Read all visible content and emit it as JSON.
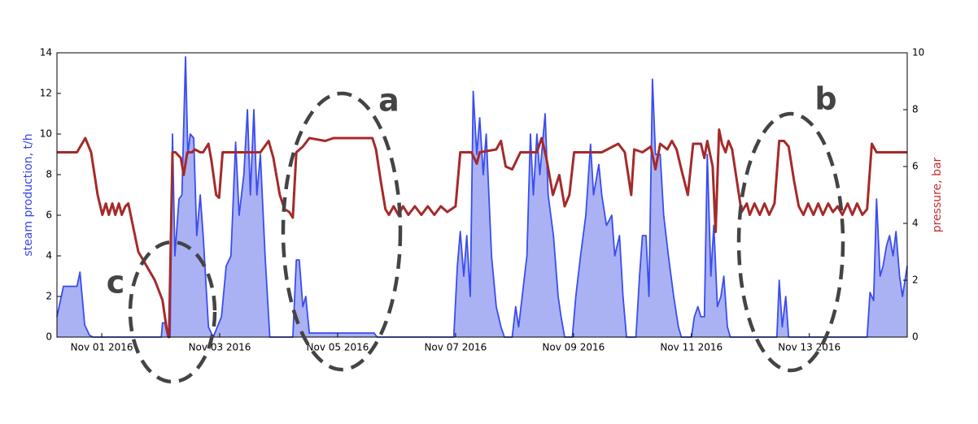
{
  "chart_data": {
    "type": "line",
    "ylabel": "steam production, t/h",
    "y2label": "pressure, bar",
    "xlim": [
      0.24,
      14.66
    ],
    "xticks": [
      {
        "value": 1,
        "label": "Nov 01 2016"
      },
      {
        "value": 3,
        "label": "Nov 03 2016"
      },
      {
        "value": 5,
        "label": "Nov 05 2016"
      },
      {
        "value": 7,
        "label": "Nov 07 2016"
      },
      {
        "value": 9,
        "label": "Nov 09 2016"
      },
      {
        "value": 11,
        "label": "Nov 11 2016"
      },
      {
        "value": 13,
        "label": "Nov 13 2016"
      }
    ],
    "ylim": [
      0,
      14
    ],
    "yticks": [
      0,
      2,
      4,
      6,
      8,
      10,
      12,
      14
    ],
    "y2lim": [
      0,
      10
    ],
    "y2ticks": [
      0,
      2,
      4,
      6,
      8,
      10
    ],
    "grid": false,
    "annotations": [
      {
        "text": "a"
      },
      {
        "text": "b"
      },
      {
        "text": "c"
      }
    ],
    "series": [
      {
        "color": "#3a4cf0",
        "fill": "#aab2f4",
        "axis": "y",
        "x": [
          0.24,
          0.35,
          0.58,
          0.63,
          0.71,
          0.79,
          0.85,
          2.01,
          2.03,
          2.07,
          2.12,
          2.16,
          2.2,
          2.24,
          2.31,
          2.36,
          2.42,
          2.46,
          2.5,
          2.56,
          2.61,
          2.67,
          2.72,
          2.81,
          2.89,
          3.03,
          3.11,
          3.19,
          3.27,
          3.33,
          3.41,
          3.47,
          3.52,
          3.58,
          3.63,
          3.69,
          3.77,
          3.85,
          4.24,
          4.3,
          4.35,
          4.41,
          4.46,
          4.52,
          5.62,
          5.67,
          6.97,
          7.03,
          7.08,
          7.14,
          7.19,
          7.25,
          7.3,
          7.36,
          7.41,
          7.47,
          7.52,
          7.61,
          7.69,
          7.77,
          7.83,
          7.96,
          8.02,
          8.07,
          8.13,
          8.21,
          8.27,
          8.32,
          8.38,
          8.43,
          8.52,
          8.57,
          8.66,
          8.74,
          8.79,
          8.85,
          8.98,
          9.04,
          9.12,
          9.21,
          9.29,
          9.34,
          9.43,
          9.48,
          9.56,
          9.65,
          9.7,
          9.78,
          9.84,
          9.9,
          10.06,
          10.12,
          10.17,
          10.23,
          10.28,
          10.34,
          10.39,
          10.47,
          10.53,
          10.61,
          10.7,
          10.78,
          10.83,
          11.0,
          11.05,
          11.11,
          11.16,
          11.22,
          11.27,
          11.33,
          11.38,
          11.44,
          11.5,
          11.55,
          11.61,
          11.66,
          12.45,
          12.49,
          12.54,
          12.6,
          12.65,
          13.98,
          14.03,
          14.09,
          14.14,
          14.2,
          14.25,
          14.31,
          14.36,
          14.42,
          14.47,
          14.53,
          14.58,
          14.66
        ],
        "values": [
          1.0,
          2.5,
          2.5,
          3.2,
          0.6,
          0.1,
          0,
          0,
          0.7,
          0.7,
          0,
          0,
          10,
          4,
          6.8,
          7,
          13.8,
          9,
          10,
          9.8,
          5,
          7,
          5,
          0.5,
          0,
          1,
          3.5,
          4,
          9.6,
          6,
          8,
          11.2,
          7,
          11.2,
          7,
          9,
          4,
          0,
          0,
          3.8,
          3.8,
          1.5,
          2,
          0.2,
          0.2,
          0,
          0,
          3.5,
          5.2,
          3,
          5,
          2,
          12.1,
          9,
          10.8,
          8,
          10,
          4,
          1.5,
          0.5,
          0,
          0,
          1.5,
          0.5,
          2,
          4,
          10,
          7,
          10,
          8,
          11,
          7,
          5,
          2,
          1,
          0,
          0,
          2,
          4,
          6,
          9.5,
          7,
          8.5,
          7,
          5.5,
          6,
          4,
          5,
          2,
          0,
          0,
          3,
          5,
          5,
          2,
          12.7,
          9,
          9,
          6,
          4,
          2,
          0.5,
          0,
          0,
          1,
          1.5,
          1,
          1,
          9,
          3,
          5.5,
          1.5,
          2,
          3,
          0.5,
          0,
          0,
          2.8,
          0.5,
          2,
          0,
          0,
          2.2,
          1.8,
          6.8,
          3,
          3.5,
          4.5,
          5,
          4,
          5.2,
          3,
          2,
          3.5
        ]
      },
      {
        "color": "#a52a2a",
        "axis": "y2",
        "x": [
          0.24,
          0.58,
          0.72,
          0.82,
          0.93,
          1.01,
          1.07,
          1.12,
          1.18,
          1.23,
          1.29,
          1.34,
          1.4,
          1.45,
          1.54,
          1.62,
          1.76,
          1.9,
          2.03,
          2.1,
          2.14,
          2.2,
          2.25,
          2.34,
          2.39,
          2.45,
          2.53,
          2.58,
          2.67,
          2.72,
          2.81,
          2.86,
          2.94,
          2.99,
          3.05,
          3.41,
          3.69,
          3.83,
          3.91,
          4.02,
          4.1,
          4.18,
          4.24,
          4.3,
          4.41,
          4.52,
          4.79,
          4.93,
          5.34,
          5.59,
          5.65,
          5.73,
          5.81,
          5.87,
          5.95,
          6.03,
          6.11,
          6.2,
          6.31,
          6.42,
          6.53,
          6.64,
          6.75,
          6.86,
          7.0,
          7.08,
          7.27,
          7.36,
          7.41,
          7.69,
          7.77,
          7.85,
          7.96,
          8.1,
          8.38,
          8.46,
          8.54,
          8.65,
          8.76,
          8.85,
          8.93,
          9.01,
          9.48,
          9.76,
          9.87,
          9.98,
          10.03,
          10.17,
          10.31,
          10.39,
          10.47,
          10.59,
          10.67,
          10.75,
          10.83,
          10.94,
          11.03,
          11.16,
          11.22,
          11.27,
          11.36,
          11.41,
          11.47,
          11.52,
          11.58,
          11.63,
          11.69,
          11.77,
          11.85,
          11.94,
          11.99,
          12.07,
          12.16,
          12.24,
          12.32,
          12.41,
          12.49,
          12.57,
          12.65,
          12.74,
          12.82,
          12.9,
          12.98,
          13.07,
          13.15,
          13.23,
          13.32,
          13.4,
          13.48,
          13.56,
          13.65,
          13.73,
          13.81,
          13.9,
          13.98,
          14.06,
          14.14,
          14.45,
          14.66
        ],
        "values": [
          6.5,
          6.5,
          7.0,
          6.5,
          5.0,
          4.3,
          4.7,
          4.3,
          4.7,
          4.3,
          4.7,
          4.3,
          4.6,
          4.7,
          3.8,
          3.0,
          2.5,
          2.0,
          1.3,
          0.3,
          0,
          6.5,
          6.5,
          6.3,
          5.7,
          6.5,
          6.5,
          6.6,
          6.5,
          6.5,
          6.8,
          6.2,
          5.0,
          4.9,
          6.5,
          6.5,
          6.5,
          6.9,
          6.3,
          5.0,
          4.5,
          4.4,
          4.2,
          6.5,
          6.7,
          7.0,
          6.9,
          7.0,
          7.0,
          7.0,
          6.6,
          5.5,
          4.5,
          4.3,
          4.6,
          4.3,
          4.6,
          4.3,
          4.6,
          4.3,
          4.6,
          4.3,
          4.6,
          4.4,
          4.6,
          6.5,
          6.5,
          6.1,
          6.5,
          6.6,
          6.9,
          6.0,
          5.9,
          6.5,
          6.5,
          7.0,
          6.3,
          5.0,
          5.7,
          4.6,
          5.0,
          6.5,
          6.5,
          6.8,
          6.5,
          5.0,
          6.6,
          6.5,
          6.7,
          5.9,
          6.8,
          6.6,
          6.9,
          6.6,
          5.9,
          5.0,
          6.8,
          6.8,
          6.3,
          6.9,
          6.0,
          3.7,
          7.3,
          6.8,
          6.5,
          6.9,
          6.6,
          5.5,
          4.4,
          4.7,
          4.3,
          4.7,
          4.3,
          4.7,
          4.3,
          4.7,
          6.9,
          6.9,
          6.7,
          5.5,
          4.6,
          4.3,
          4.7,
          4.3,
          4.7,
          4.3,
          4.7,
          4.4,
          4.6,
          4.3,
          4.7,
          4.3,
          4.7,
          4.3,
          4.5,
          6.8,
          6.5,
          6.5,
          6.5
        ]
      }
    ]
  }
}
